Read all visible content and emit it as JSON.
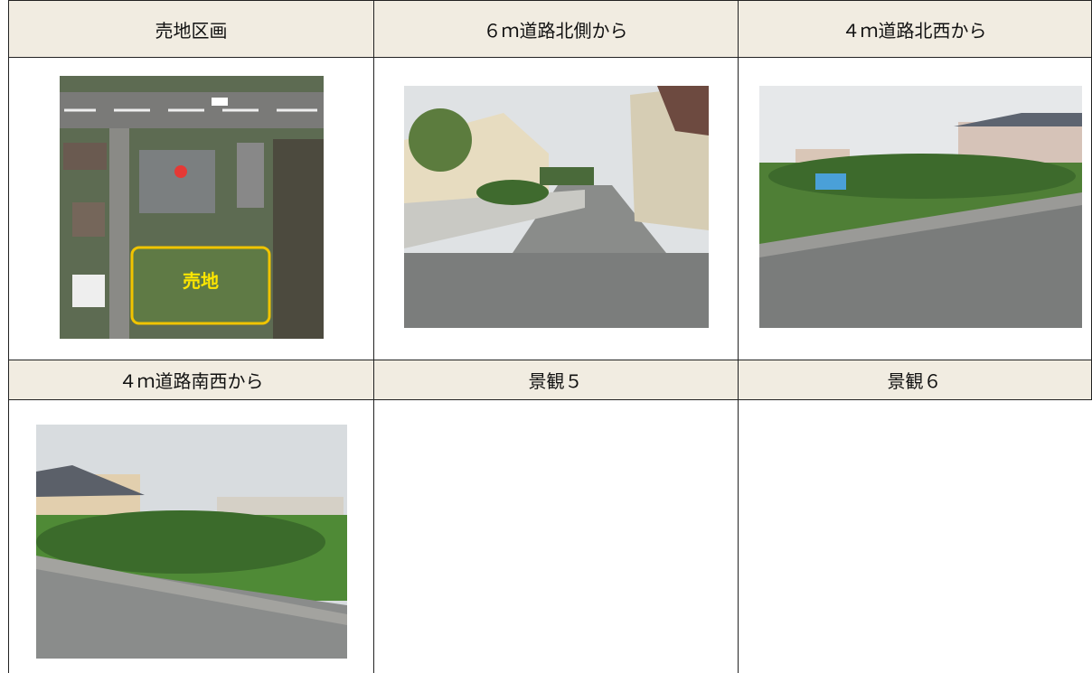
{
  "table": {
    "rows": [
      [
        "売地区画",
        "６ｍ道路北側から",
        "４ｍ道路北西から"
      ],
      [
        "４ｍ道路南西から",
        "景観５",
        "景観６"
      ]
    ]
  },
  "aerial": {
    "label": "売地"
  }
}
